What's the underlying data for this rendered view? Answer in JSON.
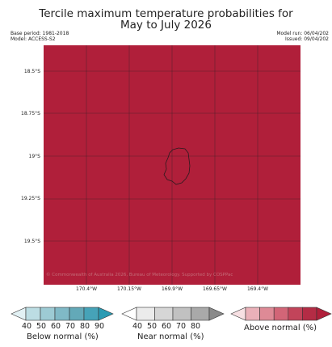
{
  "title": {
    "line1": "Tercile maximum temperature probabilities for",
    "line2": "May to July 2026"
  },
  "meta": {
    "base_period": "Base period: 1981-2018",
    "model": "Model: ACCESS-S2",
    "model_run": "Model run: 06/04/202",
    "issued": "Issued: 09/04/202"
  },
  "map": {
    "fill_color": "#b01f3a",
    "grid_color": "#3a1f26",
    "lat_labels": [
      "18.5°S",
      "18.75°S",
      "19°S",
      "19.25°S",
      "19.5°S"
    ],
    "lon_labels": [
      "170.4°W",
      "170.15°W",
      "169.9°W",
      "169.65°W",
      "169.4°W"
    ],
    "copyright": "© Commonwealth of Australia 2026, Bureau of Meteorology. Supported by COSPPac"
  },
  "legend": {
    "below": {
      "caption": "Below normal (%)",
      "ticks": [
        "40",
        "50",
        "60",
        "70",
        "80",
        "90"
      ],
      "colors": [
        "#e2f1f4",
        "#bcdde3",
        "#9dcbd4",
        "#80b9c6",
        "#63a9b8",
        "#46a3b8",
        "#2b9bb3"
      ]
    },
    "near": {
      "caption": "Near normal (%)",
      "ticks": [
        "40",
        "50",
        "60",
        "70",
        "80"
      ],
      "colors": [
        "#ffffff",
        "#ebebeb",
        "#d6d6d6",
        "#c1c1c1",
        "#a9a9a9",
        "#8a8a8a"
      ]
    },
    "above": {
      "caption": "Above normal (%)",
      "colors": [
        "#f7e0e3",
        "#eab1b9",
        "#de8a96",
        "#d26577",
        "#c2445a",
        "#b42c45",
        "#b01f3a"
      ]
    }
  }
}
